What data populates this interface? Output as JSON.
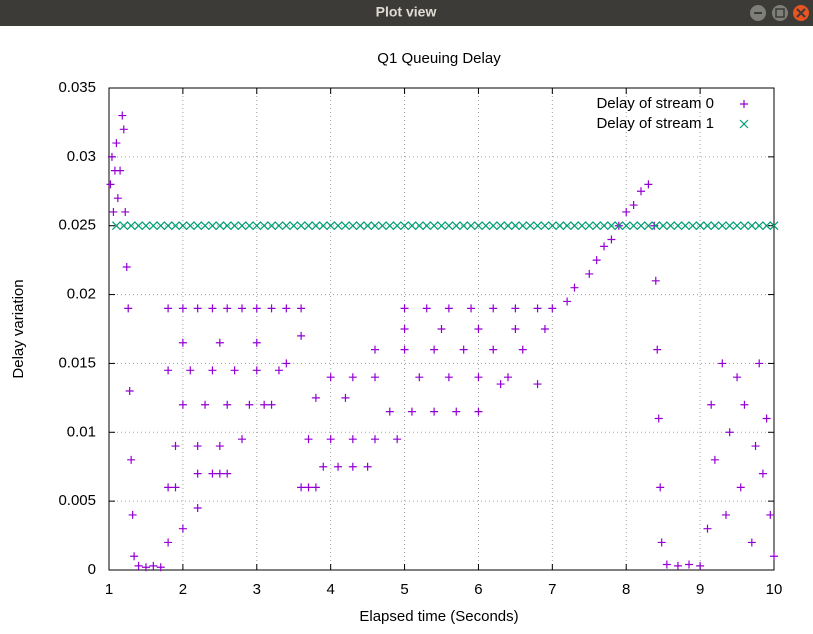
{
  "window_title": "Plot view",
  "chart_data": {
    "type": "scatter",
    "title": "Q1 Queuing Delay",
    "xlabel": "Elapsed time (Seconds)",
    "ylabel": "Delay variation",
    "xlim": [
      1,
      10
    ],
    "ylim": [
      0,
      0.035
    ],
    "xticks": [
      1,
      2,
      3,
      4,
      5,
      6,
      7,
      8,
      9,
      10
    ],
    "yticks": [
      0,
      0.005,
      0.01,
      0.015,
      0.02,
      0.025,
      0.03,
      0.035
    ],
    "grid": true,
    "legend": "top right",
    "series": [
      {
        "name": "Delay of stream 0",
        "color": "#9400d3",
        "marker": "plus",
        "x": [
          1.02,
          1.04,
          1.06,
          1.08,
          1.1,
          1.12,
          1.15,
          1.18,
          1.2,
          1.22,
          1.24,
          1.26,
          1.28,
          1.3,
          1.32,
          1.34,
          1.4,
          1.5,
          1.6,
          1.7,
          1.8,
          2.0,
          2.2,
          2.4,
          2.6,
          2.8,
          3.0,
          3.2,
          3.4,
          3.6,
          1.8,
          2.1,
          2.4,
          2.7,
          3.0,
          3.3,
          2.0,
          2.3,
          2.6,
          2.9,
          3.2,
          2.0,
          2.5,
          3.0,
          1.9,
          2.2,
          2.5,
          2.2,
          2.4,
          2.6,
          1.8,
          1.9,
          1.8,
          2.0,
          2.2,
          2.5,
          2.8,
          3.1,
          3.4,
          3.6,
          3.6,
          3.7,
          3.8,
          3.9,
          4.1,
          4.3,
          4.5,
          3.7,
          4.0,
          4.3,
          4.6,
          4.9,
          4.8,
          5.1,
          5.4,
          5.7,
          6.0,
          3.8,
          4.2,
          4.0,
          4.3,
          4.6,
          5.2,
          5.6,
          6.0,
          6.4,
          4.6,
          5.0,
          5.4,
          5.8,
          6.2,
          6.6,
          5.0,
          5.5,
          6.0,
          6.5,
          6.9,
          5.0,
          5.3,
          5.6,
          5.9,
          6.2,
          6.5,
          6.8,
          6.3,
          6.8,
          7.0,
          7.2,
          7.3,
          7.5,
          7.6,
          7.7,
          7.8,
          7.9,
          8.0,
          8.1,
          8.2,
          8.3,
          8.38,
          8.4,
          8.42,
          8.44,
          8.46,
          8.48,
          8.55,
          8.7,
          8.85,
          9.0,
          9.1,
          9.15,
          9.2,
          9.3,
          9.35,
          9.4,
          9.5,
          9.55,
          9.6,
          9.7,
          9.75,
          9.8,
          9.85,
          9.9,
          9.95,
          10.0
        ],
        "values": [
          0.028,
          0.03,
          0.026,
          0.029,
          0.031,
          0.027,
          0.029,
          0.033,
          0.032,
          0.026,
          0.022,
          0.019,
          0.013,
          0.008,
          0.004,
          0.001,
          0.0003,
          0.0002,
          0.0003,
          0.0002,
          0.019,
          0.019,
          0.019,
          0.019,
          0.019,
          0.019,
          0.019,
          0.019,
          0.019,
          0.019,
          0.0145,
          0.0145,
          0.0145,
          0.0145,
          0.0145,
          0.0145,
          0.012,
          0.012,
          0.012,
          0.012,
          0.012,
          0.0165,
          0.0165,
          0.0165,
          0.009,
          0.009,
          0.009,
          0.007,
          0.007,
          0.007,
          0.006,
          0.006,
          0.002,
          0.003,
          0.0045,
          0.007,
          0.0095,
          0.012,
          0.015,
          0.017,
          0.006,
          0.006,
          0.006,
          0.0075,
          0.0075,
          0.0075,
          0.0075,
          0.0095,
          0.0095,
          0.0095,
          0.0095,
          0.0095,
          0.0115,
          0.0115,
          0.0115,
          0.0115,
          0.0115,
          0.0125,
          0.0125,
          0.014,
          0.014,
          0.014,
          0.014,
          0.014,
          0.014,
          0.014,
          0.016,
          0.016,
          0.016,
          0.016,
          0.016,
          0.016,
          0.0175,
          0.0175,
          0.0175,
          0.0175,
          0.0175,
          0.019,
          0.019,
          0.019,
          0.019,
          0.019,
          0.019,
          0.019,
          0.0135,
          0.0135,
          0.019,
          0.0195,
          0.0205,
          0.0215,
          0.0225,
          0.0235,
          0.024,
          0.025,
          0.026,
          0.0265,
          0.0275,
          0.028,
          0.025,
          0.021,
          0.016,
          0.011,
          0.006,
          0.002,
          0.0004,
          0.0003,
          0.0004,
          0.0003,
          0.003,
          0.012,
          0.008,
          0.015,
          0.004,
          0.01,
          0.014,
          0.006,
          0.012,
          0.002,
          0.009,
          0.015,
          0.007,
          0.011,
          0.004,
          0.001
        ]
      },
      {
        "name": "Delay of stream 1",
        "color": "#009e73",
        "marker": "cross",
        "x": [
          1.1,
          1.2,
          1.3,
          1.4,
          1.5,
          1.6,
          1.7,
          1.8,
          1.9,
          2.0,
          2.1,
          2.2,
          2.3,
          2.4,
          2.5,
          2.6,
          2.7,
          2.8,
          2.9,
          3.0,
          3.1,
          3.2,
          3.3,
          3.4,
          3.5,
          3.6,
          3.7,
          3.8,
          3.9,
          4.0,
          4.1,
          4.2,
          4.3,
          4.4,
          4.5,
          4.6,
          4.7,
          4.8,
          4.9,
          5.0,
          5.1,
          5.2,
          5.3,
          5.4,
          5.5,
          5.6,
          5.7,
          5.8,
          5.9,
          6.0,
          6.1,
          6.2,
          6.3,
          6.4,
          6.5,
          6.6,
          6.7,
          6.8,
          6.9,
          7.0,
          7.1,
          7.2,
          7.3,
          7.4,
          7.5,
          7.6,
          7.7,
          7.8,
          7.9,
          8.0,
          8.1,
          8.2,
          8.3,
          8.4,
          8.5,
          8.6,
          8.7,
          8.8,
          8.9,
          9.0,
          9.1,
          9.2,
          9.3,
          9.4,
          9.5,
          9.6,
          9.7,
          9.8,
          9.9,
          10.0
        ],
        "values": [
          0.025,
          0.025,
          0.025,
          0.025,
          0.025,
          0.025,
          0.025,
          0.025,
          0.025,
          0.025,
          0.025,
          0.025,
          0.025,
          0.025,
          0.025,
          0.025,
          0.025,
          0.025,
          0.025,
          0.025,
          0.025,
          0.025,
          0.025,
          0.025,
          0.025,
          0.025,
          0.025,
          0.025,
          0.025,
          0.025,
          0.025,
          0.025,
          0.025,
          0.025,
          0.025,
          0.025,
          0.025,
          0.025,
          0.025,
          0.025,
          0.025,
          0.025,
          0.025,
          0.025,
          0.025,
          0.025,
          0.025,
          0.025,
          0.025,
          0.025,
          0.025,
          0.025,
          0.025,
          0.025,
          0.025,
          0.025,
          0.025,
          0.025,
          0.025,
          0.025,
          0.025,
          0.025,
          0.025,
          0.025,
          0.025,
          0.025,
          0.025,
          0.025,
          0.025,
          0.025,
          0.025,
          0.025,
          0.025,
          0.025,
          0.025,
          0.025,
          0.025,
          0.025,
          0.025,
          0.025,
          0.025,
          0.025,
          0.025,
          0.025,
          0.025,
          0.025,
          0.025,
          0.025,
          0.025,
          0.025
        ]
      }
    ]
  }
}
